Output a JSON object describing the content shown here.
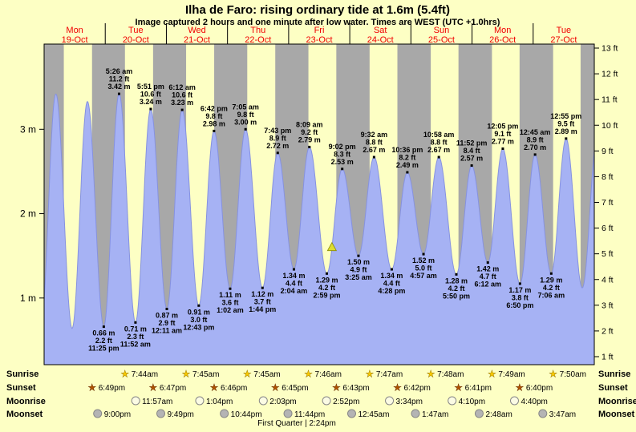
{
  "colors": {
    "background": "#fdffc4",
    "day_band": "#fdffc4",
    "night_band": "#a8a8a8",
    "tide_fill": "#a6b2f4",
    "tide_stroke": "#8692e0",
    "date_text": "#f00000",
    "marker": "#dede30",
    "marker_stroke": "#8a8a00",
    "moonrise_icon": "#fbfbe4",
    "moonset_icon": "#b4b4b4"
  },
  "chart_data": {
    "type": "area",
    "title": "Ilha de Faro: rising ordinary tide at 1.6m (5.4ft)",
    "subtitle": "Image captured 2 hours and one minute after low water. Times are WEST (UTC +1.0hrs)",
    "y_axis_left": {
      "unit": "m",
      "ticks": [
        1,
        2,
        3
      ]
    },
    "y_axis_right": {
      "unit": "ft",
      "ticks": [
        1,
        2,
        3,
        4,
        5,
        6,
        7,
        8,
        9,
        10,
        11,
        12,
        13
      ]
    },
    "days": [
      {
        "name": "Mon",
        "date": "19-Oct"
      },
      {
        "name": "Tue",
        "date": "20-Oct"
      },
      {
        "name": "Wed",
        "date": "21-Oct"
      },
      {
        "name": "Thu",
        "date": "22-Oct"
      },
      {
        "name": "Fri",
        "date": "23-Oct"
      },
      {
        "name": "Sat",
        "date": "24-Oct"
      },
      {
        "name": "Sun",
        "date": "25-Oct"
      },
      {
        "name": "Mon",
        "date": "26-Oct"
      },
      {
        "name": "Tue",
        "date": "27-Oct"
      }
    ],
    "tide_events": [
      {
        "day": 0,
        "time": "11:25 pm",
        "type": "low",
        "m": 0.66,
        "ft": 2.2
      },
      {
        "day": 1,
        "time": "5:26 am",
        "type": "high",
        "m": 3.42,
        "ft": 11.2
      },
      {
        "day": 1,
        "time": "11:52 am",
        "type": "low",
        "m": 0.71,
        "ft": 2.3
      },
      {
        "day": 1,
        "time": "5:51 pm",
        "type": "high",
        "m": 3.24,
        "ft": 10.6
      },
      {
        "day": 2,
        "time": "12:11 am",
        "type": "low",
        "m": 0.87,
        "ft": 2.9
      },
      {
        "day": 2,
        "time": "6:12 am",
        "type": "high",
        "m": 3.23,
        "ft": 10.6
      },
      {
        "day": 2,
        "time": "12:43 pm",
        "type": "low",
        "m": 0.91,
        "ft": 3.0
      },
      {
        "day": 2,
        "time": "6:42 pm",
        "type": "high",
        "m": 2.98,
        "ft": 9.8
      },
      {
        "day": 3,
        "time": "1:02 am",
        "type": "low",
        "m": 1.11,
        "ft": 3.6
      },
      {
        "day": 3,
        "time": "7:05 am",
        "type": "high",
        "m": 3.0,
        "ft": 9.8
      },
      {
        "day": 3,
        "time": "1:44 pm",
        "type": "low",
        "m": 1.12,
        "ft": 3.7
      },
      {
        "day": 3,
        "time": "7:43 pm",
        "type": "high",
        "m": 2.72,
        "ft": 8.9
      },
      {
        "day": 4,
        "time": "2:04 am",
        "type": "low",
        "m": 1.34,
        "ft": 4.4
      },
      {
        "day": 4,
        "time": "8:09 am",
        "type": "high",
        "m": 2.79,
        "ft": 9.2
      },
      {
        "day": 4,
        "time": "2:59 pm",
        "type": "low",
        "m": 1.29,
        "ft": 4.2
      },
      {
        "day": 4,
        "time": "9:02 pm",
        "type": "high",
        "m": 2.53,
        "ft": 8.3
      },
      {
        "day": 5,
        "time": "3:25 am",
        "type": "low",
        "m": 1.5,
        "ft": 4.9
      },
      {
        "day": 5,
        "time": "9:32 am",
        "type": "high",
        "m": 2.67,
        "ft": 8.8
      },
      {
        "day": 5,
        "time": "4:28 pm",
        "type": "low",
        "m": 1.34,
        "ft": 4.4
      },
      {
        "day": 5,
        "time": "10:36 pm",
        "type": "high",
        "m": 2.49,
        "ft": 8.2
      },
      {
        "day": 6,
        "time": "4:57 am",
        "type": "low",
        "m": 1.52,
        "ft": 5.0
      },
      {
        "day": 6,
        "time": "10:58 am",
        "type": "high",
        "m": 2.67,
        "ft": 8.8
      },
      {
        "day": 6,
        "time": "5:50 pm",
        "type": "low",
        "m": 1.28,
        "ft": 4.2
      },
      {
        "day": 6,
        "time": "11:52 pm",
        "type": "high",
        "m": 2.57,
        "ft": 8.4
      },
      {
        "day": 7,
        "time": "6:12 am",
        "type": "low",
        "m": 1.42,
        "ft": 4.7
      },
      {
        "day": 7,
        "time": "12:05 pm",
        "type": "high",
        "m": 2.77,
        "ft": 9.1
      },
      {
        "day": 7,
        "time": "6:50 pm",
        "type": "low",
        "m": 1.17,
        "ft": 3.8
      },
      {
        "day": 8,
        "time": "12:45 am",
        "type": "high",
        "m": 2.7,
        "ft": 8.9
      },
      {
        "day": 8,
        "time": "7:06 am",
        "type": "low",
        "m": 1.29,
        "ft": 4.2
      },
      {
        "day": 8,
        "time": "12:55 pm",
        "type": "high",
        "m": 2.89,
        "ft": 9.5
      }
    ],
    "curve_edge_events": [
      {
        "t": -1.4,
        "m": 0.6
      },
      {
        "t": 4.6,
        "m": 3.42
      },
      {
        "t": 11.0,
        "m": 0.64
      },
      {
        "t": 17.0,
        "m": 3.33
      },
      {
        "t": 211.3,
        "m": 1.12
      },
      {
        "t": 217.2,
        "m": 2.92
      }
    ],
    "current_marker": {
      "day": 4,
      "time": "5:00pm",
      "level_m": 1.6
    },
    "astro": {
      "rows": [
        {
          "label": "Sunrise",
          "icon": "star",
          "entries": [
            {
              "day": 1,
              "time": "7:44am"
            },
            {
              "day": 2,
              "time": "7:45am"
            },
            {
              "day": 3,
              "time": "7:45am"
            },
            {
              "day": 4,
              "time": "7:46am"
            },
            {
              "day": 5,
              "time": "7:47am"
            },
            {
              "day": 6,
              "time": "7:48am"
            },
            {
              "day": 7,
              "time": "7:49am"
            },
            {
              "day": 8,
              "time": "7:50am"
            }
          ]
        },
        {
          "label": "Sunset",
          "icon": "star",
          "entries": [
            {
              "day": 0,
              "time": "6:49pm"
            },
            {
              "day": 1,
              "time": "6:47pm"
            },
            {
              "day": 2,
              "time": "6:46pm"
            },
            {
              "day": 3,
              "time": "6:45pm"
            },
            {
              "day": 4,
              "time": "6:43pm"
            },
            {
              "day": 5,
              "time": "6:42pm"
            },
            {
              "day": 6,
              "time": "6:41pm"
            },
            {
              "day": 7,
              "time": "6:40pm"
            }
          ]
        },
        {
          "label": "Moonrise",
          "icon": "circle-light",
          "entries": [
            {
              "day": 1,
              "time": "11:57am"
            },
            {
              "day": 2,
              "time": "1:04pm"
            },
            {
              "day": 3,
              "time": "2:03pm"
            },
            {
              "day": 4,
              "time": "2:52pm"
            },
            {
              "day": 5,
              "time": "3:34pm"
            },
            {
              "day": 6,
              "time": "4:10pm"
            },
            {
              "day": 7,
              "time": "4:40pm"
            }
          ]
        },
        {
          "label": "Moonset",
          "icon": "circle-dark",
          "entries": [
            {
              "day": 0,
              "time": "9:00pm"
            },
            {
              "day": 1,
              "time": "9:49pm"
            },
            {
              "day": 2,
              "time": "10:44pm"
            },
            {
              "day": 3,
              "time": "11:44pm"
            },
            {
              "day": 5,
              "time": "12:45am"
            },
            {
              "day": 6,
              "time": "1:47am"
            },
            {
              "day": 7,
              "time": "2:48am"
            },
            {
              "day": 8,
              "time": "3:47am"
            }
          ]
        }
      ],
      "moon_phase": "First Quarter | 2:24pm"
    }
  }
}
